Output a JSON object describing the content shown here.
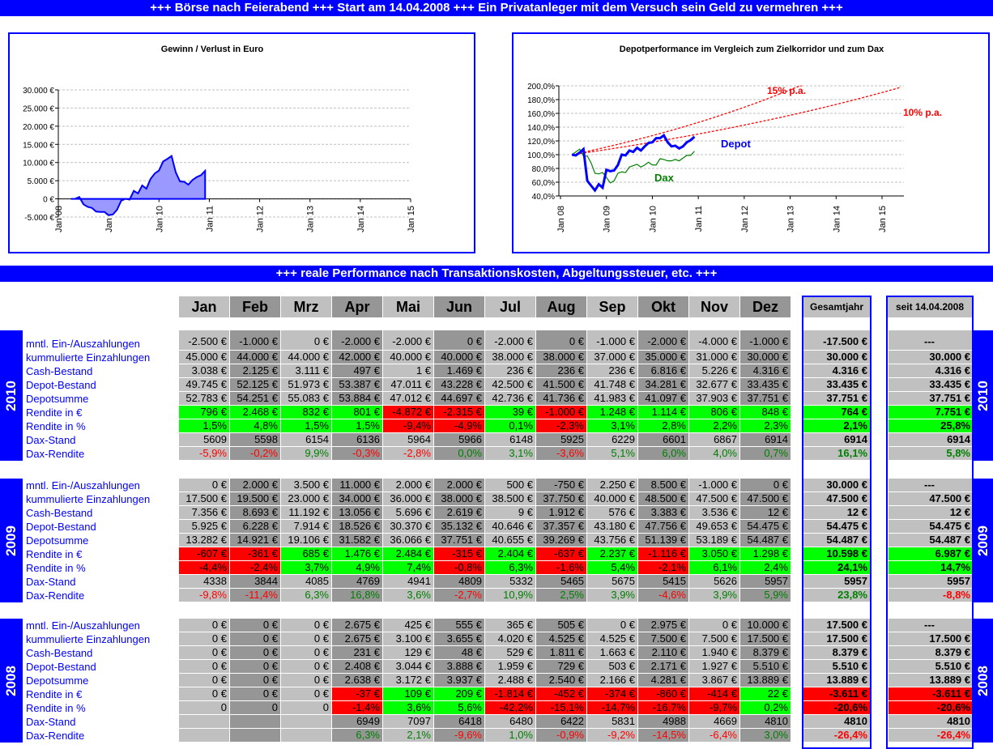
{
  "header": {
    "title": "+++ Börse nach Feierabend +++ Start am 14.04.2008 +++ Ein Privatanleger mit dem Versuch sein Geld zu vermehren +++"
  },
  "section": {
    "title": "+++ reale Performance nach Transaktionskosten, Abgeltungssteuer, etc. +++"
  },
  "colors": {
    "accent": "#0000ff",
    "positive": "#00ff00",
    "negative": "#ff0000",
    "cell_light": "#c0c0c0",
    "cell_dark": "#969696",
    "text_positive": "#008000",
    "text_negative": "#ff0000"
  },
  "chart_data": [
    {
      "type": "area",
      "title": "Gewinn / Verlust in Euro",
      "ylim": [
        -5000,
        30000
      ],
      "yticks": [
        "-5.000 €",
        "0 €",
        "5.000 €",
        "10.000 €",
        "15.000 €",
        "20.000 €",
        "25.000 €",
        "30.000 €"
      ],
      "ytick_values": [
        -5000,
        0,
        5000,
        10000,
        15000,
        20000,
        25000,
        30000
      ],
      "xticks": [
        "Jan 08",
        "Jan 09",
        "Jan 10",
        "Jan 11",
        "Jan 12",
        "Jan 13",
        "Jan 14",
        "Jan 15"
      ],
      "xlim": [
        "2008-01",
        "2015-01"
      ],
      "grid": true,
      "color": "#0000ff",
      "fill": "#9999ff",
      "x": [
        "2008-04",
        "2008-05",
        "2008-06",
        "2008-07",
        "2008-08",
        "2008-09",
        "2008-10",
        "2008-11",
        "2008-12",
        "2009-01",
        "2009-02",
        "2009-03",
        "2009-04",
        "2009-05",
        "2009-06",
        "2009-07",
        "2009-08",
        "2009-09",
        "2009-10",
        "2009-11",
        "2009-12",
        "2010-01",
        "2010-02",
        "2010-03",
        "2010-04",
        "2010-05",
        "2010-06",
        "2010-07",
        "2010-08",
        "2010-09",
        "2010-10",
        "2010-11",
        "2010-12"
      ],
      "values": [
        0,
        0,
        500,
        -1500,
        -2200,
        -2500,
        -3500,
        -3600,
        -3600,
        -4500,
        -4300,
        -3000,
        -500,
        0,
        -200,
        2200,
        1500,
        3700,
        2800,
        5500,
        7000,
        7800,
        10300,
        11000,
        11800,
        7300,
        4800,
        4700,
        3900,
        5200,
        6000,
        6500,
        7700
      ]
    },
    {
      "type": "line",
      "title": "Depotperformance im Vergleich zum Zielkorridor und zum Dax",
      "ylim": [
        40,
        200
      ],
      "yticks": [
        "40,0%",
        "60,0%",
        "80,0%",
        "100,0%",
        "120,0%",
        "140,0%",
        "160,0%",
        "180,0%",
        "200,0%"
      ],
      "ytick_values": [
        40,
        60,
        80,
        100,
        120,
        140,
        160,
        180,
        200
      ],
      "xticks": [
        "Jan 08",
        "Jan 09",
        "Jan 10",
        "Jan 11",
        "Jan 12",
        "Jan 13",
        "Jan 14",
        "Jan 15"
      ],
      "xlim": [
        "2008-01",
        "2015-06"
      ],
      "grid": true,
      "x": [
        "2008-04",
        "2008-05",
        "2008-06",
        "2008-07",
        "2008-08",
        "2008-09",
        "2008-10",
        "2008-11",
        "2008-12",
        "2009-01",
        "2009-02",
        "2009-03",
        "2009-04",
        "2009-05",
        "2009-06",
        "2009-07",
        "2009-08",
        "2009-09",
        "2009-10",
        "2009-11",
        "2009-12",
        "2010-01",
        "2010-02",
        "2010-03",
        "2010-04",
        "2010-05",
        "2010-06",
        "2010-07",
        "2010-08",
        "2010-09",
        "2010-10",
        "2010-11",
        "2010-12"
      ],
      "series": [
        {
          "name": "Depot",
          "color": "#0000ff",
          "values": [
            100,
            99,
            103,
            108,
            62,
            55,
            48,
            57,
            52,
            78,
            76,
            77,
            85,
            100,
            99,
            106,
            104,
            110,
            106,
            112,
            117,
            118,
            124,
            124,
            128,
            118,
            112,
            113,
            109,
            112,
            118,
            121,
            126
          ]
        },
        {
          "name": "Dax",
          "color": "#008000",
          "values": [
            100,
            104,
            108,
            98,
            98,
            88,
            73,
            72,
            74,
            67,
            59,
            62,
            73,
            75,
            74,
            82,
            84,
            86,
            82,
            85,
            89,
            85,
            85,
            94,
            93,
            91,
            91,
            93,
            91,
            95,
            99,
            99,
            105
          ]
        }
      ],
      "corridor": [
        {
          "name": "15% p.a.",
          "rate": 15,
          "start": "2008-04",
          "color": "#ff0000"
        },
        {
          "name": "10% p.a.",
          "rate": 10,
          "start": "2008-04",
          "color": "#ff0000"
        }
      ]
    }
  ],
  "table": {
    "months": [
      "Jan",
      "Feb",
      "Mrz",
      "Apr",
      "Mai",
      "Jun",
      "Jul",
      "Aug",
      "Sep",
      "Okt",
      "Nov",
      "Dez"
    ],
    "gesamt_header": "Gesamtjahr",
    "seit_header": "seit 14.04.2008",
    "years": [
      {
        "year": "2010",
        "rows": [
          {
            "label": "mntl. Ein-/Auszahlungen",
            "values": [
              "-2.500 €",
              "-1.000 €",
              "0 €",
              "-2.000 €",
              "-2.000 €",
              "0 €",
              "-2.000 €",
              "0 €",
              "-1.000 €",
              "-2.000 €",
              "-4.000 €",
              "-1.000 €"
            ],
            "gesamt": "-17.500 €",
            "seit": "---"
          },
          {
            "label": "kummulierte Einzahlungen",
            "values": [
              "45.000 €",
              "44.000 €",
              "44.000 €",
              "42.000 €",
              "40.000 €",
              "40.000 €",
              "38.000 €",
              "38.000 €",
              "37.000 €",
              "35.000 €",
              "31.000 €",
              "30.000 €"
            ],
            "gesamt": "30.000 €",
            "seit": "30.000 €"
          },
          {
            "label": "Cash-Bestand",
            "values": [
              "3.038 €",
              "2.125 €",
              "3.111 €",
              "497 €",
              "1 €",
              "1.469 €",
              "236 €",
              "236 €",
              "236 €",
              "6.816 €",
              "5.226 €",
              "4.316 €"
            ],
            "gesamt": "4.316 €",
            "seit": "4.316 €"
          },
          {
            "label": "Depot-Bestand",
            "values": [
              "49.745 €",
              "52.125 €",
              "51.973 €",
              "53.387 €",
              "47.011 €",
              "43.228 €",
              "42.500 €",
              "41.500 €",
              "41.748 €",
              "34.281 €",
              "32.677 €",
              "33.435 €"
            ],
            "gesamt": "33.435 €",
            "seit": "33.435 €"
          },
          {
            "label": "Depotsumme",
            "values": [
              "52.783 €",
              "54.251 €",
              "55.083 €",
              "53.884 €",
              "47.012 €",
              "44.697 €",
              "42.736 €",
              "41.736 €",
              "41.983 €",
              "41.097 €",
              "37.903 €",
              "37.751 €"
            ],
            "gesamt": "37.751 €",
            "seit": "37.751 €"
          },
          {
            "label": "Rendite in €",
            "kind": "fill",
            "values": [
              "796 €",
              "2.468 €",
              "832 €",
              "801 €",
              "-4.872 €",
              "-2.315 €",
              "39 €",
              "-1.000 €",
              "1.248 €",
              "1.114 €",
              "806 €",
              "848 €"
            ],
            "gesamt": "764 €",
            "seit": "7.751 €"
          },
          {
            "label": "Rendite in %",
            "kind": "fill",
            "values": [
              "1,5%",
              "4,8%",
              "1,5%",
              "1,5%",
              "-9,4%",
              "-4,9%",
              "0,1%",
              "-2,3%",
              "3,1%",
              "2,8%",
              "2,2%",
              "2,3%"
            ],
            "gesamt": "2,1%",
            "seit": "25,8%"
          },
          {
            "label": "Dax-Stand",
            "values": [
              "5609",
              "5598",
              "6154",
              "6136",
              "5964",
              "5966",
              "6148",
              "5925",
              "6229",
              "6601",
              "6867",
              "6914"
            ],
            "gesamt": "6914",
            "seit": "6914"
          },
          {
            "label": "Dax-Rendite",
            "kind": "text",
            "values": [
              "-5,9%",
              "-0,2%",
              "9,9%",
              "-0,3%",
              "-2,8%",
              "0,0%",
              "3,1%",
              "-3,6%",
              "5,1%",
              "6,0%",
              "4,0%",
              "0,7%"
            ],
            "gesamt": "16,1%",
            "seit": "5,8%"
          }
        ]
      },
      {
        "year": "2009",
        "rows": [
          {
            "label": "mntl. Ein-/Auszahlungen",
            "values": [
              "0 €",
              "2.000 €",
              "3.500 €",
              "11.000 €",
              "2.000 €",
              "2.000 €",
              "500 €",
              "-750 €",
              "2.250 €",
              "8.500 €",
              "-1.000 €",
              "0 €"
            ],
            "gesamt": "30.000 €",
            "seit": "---"
          },
          {
            "label": "kummulierte Einzahlungen",
            "values": [
              "17.500 €",
              "19.500 €",
              "23.000 €",
              "34.000 €",
              "36.000 €",
              "38.000 €",
              "38.500 €",
              "37.750 €",
              "40.000 €",
              "48.500 €",
              "47.500 €",
              "47.500 €"
            ],
            "gesamt": "47.500 €",
            "seit": "47.500 €"
          },
          {
            "label": "Cash-Bestand",
            "values": [
              "7.356 €",
              "8.693 €",
              "11.192 €",
              "13.056 €",
              "5.696 €",
              "2.619 €",
              "9 €",
              "1.912 €",
              "576 €",
              "3.383 €",
              "3.536 €",
              "12 €"
            ],
            "gesamt": "12 €",
            "seit": "12 €"
          },
          {
            "label": "Depot-Bestand",
            "values": [
              "5.925 €",
              "6.228 €",
              "7.914 €",
              "18.526 €",
              "30.370 €",
              "35.132 €",
              "40.646 €",
              "37.357 €",
              "43.180 €",
              "47.756 €",
              "49.653 €",
              "54.475 €"
            ],
            "gesamt": "54.475 €",
            "seit": "54.475 €"
          },
          {
            "label": "Depotsumme",
            "values": [
              "13.282 €",
              "14.921 €",
              "19.106 €",
              "31.582 €",
              "36.066 €",
              "37.751 €",
              "40.655 €",
              "39.269 €",
              "43.756 €",
              "51.139 €",
              "53.189 €",
              "54.487 €"
            ],
            "gesamt": "54.487 €",
            "seit": "54.487 €"
          },
          {
            "label": "Rendite in €",
            "kind": "fill",
            "values": [
              "-607 €",
              "-361 €",
              "685 €",
              "1.476 €",
              "2.484 €",
              "-315 €",
              "2.404 €",
              "-637 €",
              "2.237 €",
              "-1.116 €",
              "3.050 €",
              "1.298 €"
            ],
            "gesamt": "10.598 €",
            "seit": "6.987 €"
          },
          {
            "label": "Rendite in %",
            "kind": "fill",
            "values": [
              "-4,4%",
              "-2,4%",
              "3,7%",
              "4,9%",
              "7,4%",
              "-0,8%",
              "6,3%",
              "-1,6%",
              "5,4%",
              "-2,1%",
              "6,1%",
              "2,4%"
            ],
            "gesamt": "24,1%",
            "seit": "14,7%"
          },
          {
            "label": "Dax-Stand",
            "values": [
              "4338",
              "3844",
              "4085",
              "4769",
              "4941",
              "4809",
              "5332",
              "5465",
              "5675",
              "5415",
              "5626",
              "5957"
            ],
            "gesamt": "5957",
            "seit": "5957"
          },
          {
            "label": "Dax-Rendite",
            "kind": "text",
            "values": [
              "-9,8%",
              "-11,4%",
              "6,3%",
              "16,8%",
              "3,6%",
              "-2,7%",
              "10,9%",
              "2,5%",
              "3,9%",
              "-4,6%",
              "3,9%",
              "5,9%"
            ],
            "gesamt": "23,8%",
            "seit": "-8,8%"
          }
        ]
      },
      {
        "year": "2008",
        "rows": [
          {
            "label": "mntl. Ein-/Auszahlungen",
            "values": [
              "0 €",
              "0 €",
              "0 €",
              "2.675 €",
              "425 €",
              "555 €",
              "365 €",
              "505 €",
              "0 €",
              "2.975 €",
              "0 €",
              "10.000 €"
            ],
            "gesamt": "17.500 €",
            "seit": "---"
          },
          {
            "label": "kummulierte Einzahlungen",
            "values": [
              "0 €",
              "0 €",
              "0 €",
              "2.675 €",
              "3.100 €",
              "3.655 €",
              "4.020 €",
              "4.525 €",
              "4.525 €",
              "7.500 €",
              "7.500 €",
              "17.500 €"
            ],
            "gesamt": "17.500 €",
            "seit": "17.500 €"
          },
          {
            "label": "Cash-Bestand",
            "values": [
              "0 €",
              "0 €",
              "0 €",
              "231 €",
              "129 €",
              "48 €",
              "529 €",
              "1.811 €",
              "1.663 €",
              "2.110 €",
              "1.940 €",
              "8.379 €"
            ],
            "gesamt": "8.379 €",
            "seit": "8.379 €"
          },
          {
            "label": "Depot-Bestand",
            "values": [
              "0 €",
              "0 €",
              "0 €",
              "2.408 €",
              "3.044 €",
              "3.888 €",
              "1.959 €",
              "729 €",
              "503 €",
              "2.171 €",
              "1.927 €",
              "5.510 €"
            ],
            "gesamt": "5.510 €",
            "seit": "5.510 €"
          },
          {
            "label": "Depotsumme",
            "values": [
              "0 €",
              "0 €",
              "0 €",
              "2.638 €",
              "3.172 €",
              "3.937 €",
              "2.488 €",
              "2.540 €",
              "2.166 €",
              "4.281 €",
              "3.867 €",
              "13.889 €"
            ],
            "gesamt": "13.889 €",
            "seit": "13.889 €"
          },
          {
            "label": "Rendite in €",
            "kind": "fill",
            "values": [
              "0 €",
              "0 €",
              "0 €",
              "-37 €",
              "109 €",
              "209 €",
              "-1.814 €",
              "-452 €",
              "-374 €",
              "-860 €",
              "-414 €",
              "22 €"
            ],
            "gesamt": "-3.611 €",
            "seit": "-3.611 €"
          },
          {
            "label": "Rendite in %",
            "kind": "fill",
            "values": [
              "0",
              "0",
              "0",
              "-1,4%",
              "3,6%",
              "5,6%",
              "-42,2%",
              "-15,1%",
              "-14,7%",
              "-16,7%",
              "-9,7%",
              "0,2%"
            ],
            "gesamt": "-20,6%",
            "seit": "-20,6%"
          },
          {
            "label": "Dax-Stand",
            "values": [
              "",
              "",
              "",
              "6949",
              "7097",
              "6418",
              "6480",
              "6422",
              "5831",
              "4988",
              "4669",
              "4810"
            ],
            "gesamt": "4810",
            "seit": "4810"
          },
          {
            "label": "Dax-Rendite",
            "kind": "text",
            "values": [
              "",
              "",
              "",
              "6,3%",
              "2,1%",
              "-9,6%",
              "1,0%",
              "-0,9%",
              "-9,2%",
              "-14,5%",
              "-6,4%",
              "3,0%"
            ],
            "gesamt": "-26,4%",
            "seit": "-26,4%"
          }
        ]
      }
    ]
  }
}
